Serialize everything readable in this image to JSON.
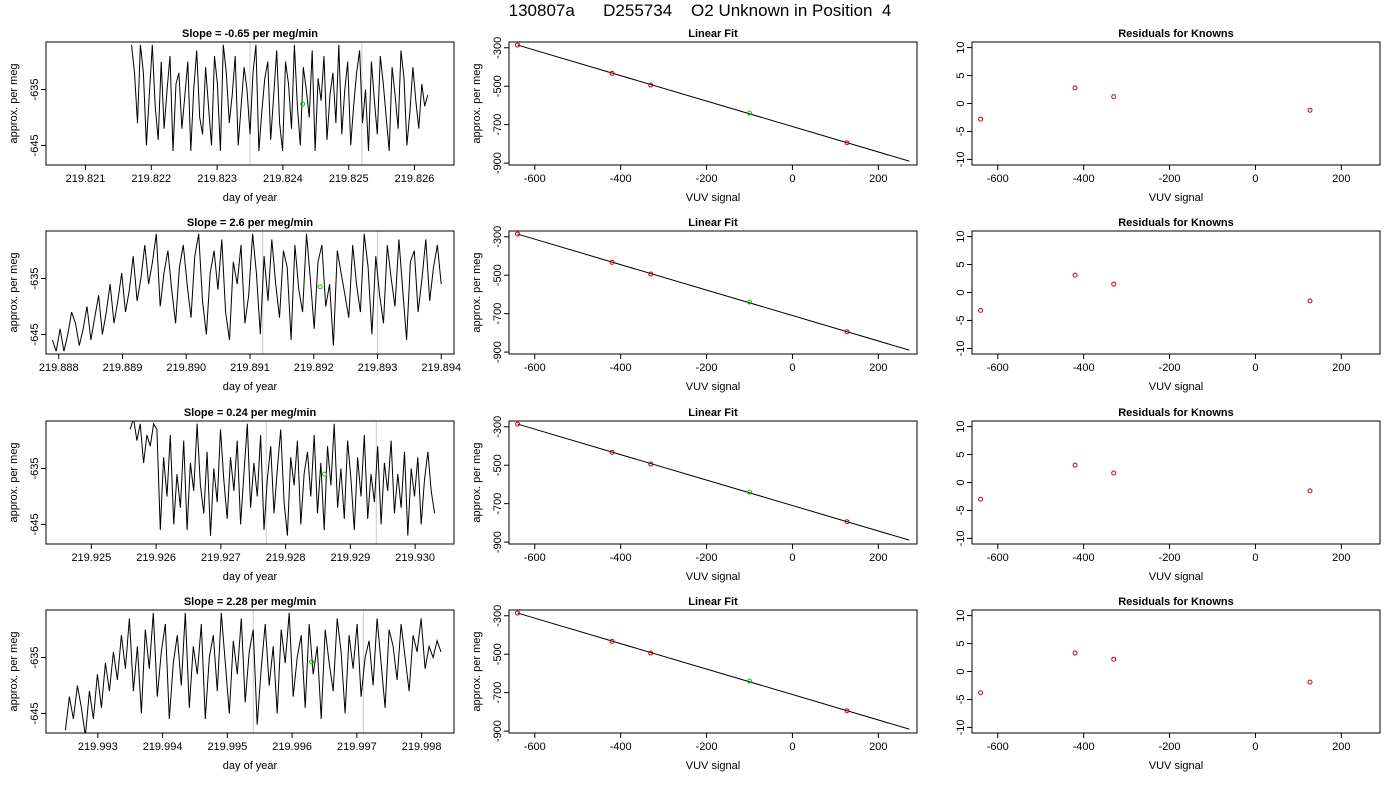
{
  "page_title": "130807a      D255734    O2 Unknown in Position  4",
  "colors": {
    "trace": "#000000",
    "known_point": "#cc0000",
    "unknown_point": "#00cc00",
    "guide_line": "#cccccc",
    "frame": "#000000"
  },
  "chart_data": [
    {
      "type": "line",
      "row": 1,
      "title": "Slope =  -0.65  per meg/min",
      "xlabel": "day of year",
      "ylabel": "approx. per meg",
      "xlim": [
        219.8204,
        219.8266
      ],
      "ylim": [
        -648.5,
        -626.5
      ],
      "x_ticks": [
        "219.821",
        "219.822",
        "219.823",
        "219.824",
        "219.825",
        "219.826"
      ],
      "y_ticks": [
        "-635",
        "-645"
      ],
      "start": 219.8217,
      "end": 219.8262,
      "guide_lines": [
        219.8235,
        219.8252
      ],
      "values": [
        -627,
        -632,
        -641,
        -627,
        -632,
        -645,
        -636,
        -627,
        -638,
        -644,
        -630,
        -642,
        -635,
        -629,
        -646,
        -634,
        -632,
        -642,
        -636,
        -630,
        -646,
        -635,
        -628,
        -640,
        -643,
        -631,
        -638,
        -645,
        -629,
        -634,
        -646,
        -627,
        -632,
        -641,
        -636,
        -629,
        -645,
        -638,
        -631,
        -635,
        -643,
        -632,
        -627,
        -646,
        -639,
        -633,
        -630,
        -644,
        -636,
        -628,
        -641,
        -646,
        -630,
        -634,
        -642,
        -627,
        -638,
        -645,
        -631,
        -635,
        -640,
        -628,
        -646,
        -633,
        -637,
        -629,
        -644,
        -636,
        -632,
        -641,
        -627,
        -643,
        -635,
        -630,
        -645,
        -638,
        -632,
        -628,
        -641,
        -635,
        -646,
        -630,
        -637,
        -643,
        -629,
        -634,
        -640,
        -646,
        -631,
        -636,
        -642,
        -628,
        -633,
        -645,
        -639,
        -631,
        -637,
        -642,
        -634,
        -638,
        -636
      ],
      "unknown_point": [
        219.8243,
        -637.6
      ]
    },
    {
      "type": "scatter",
      "row": 1,
      "title": "Linear Fit",
      "xlabel": "VUV signal",
      "ylabel": "approx. per meg",
      "xlim": [
        -660,
        290
      ],
      "ylim": [
        -910,
        -270
      ],
      "x_ticks": [
        -600,
        -400,
        -200,
        0,
        200
      ],
      "y_ticks": [
        -300,
        -500,
        -700,
        -900
      ],
      "fit_line": {
        "x": [
          -640,
          272
        ],
        "y": [
          -286,
          -890
        ]
      },
      "knowns": [
        [
          -640,
          -286
        ],
        [
          -420,
          -433
        ],
        [
          -330,
          -494
        ],
        [
          127,
          -794
        ]
      ],
      "unknown": [
        [
          -100,
          -640
        ]
      ]
    },
    {
      "type": "scatter",
      "row": 1,
      "title": "Residuals for Knowns",
      "xlabel": "VUV signal",
      "ylabel": "",
      "xlim": [
        -660,
        290
      ],
      "ylim": [
        -11,
        11
      ],
      "x_ticks": [
        -600,
        -400,
        -200,
        0,
        200
      ],
      "y_ticks": [
        10,
        5,
        0,
        -5,
        -10
      ],
      "knowns": [
        [
          -640,
          -2.8
        ],
        [
          -420,
          2.8
        ],
        [
          -330,
          1.2
        ],
        [
          127,
          -1.2
        ]
      ]
    },
    {
      "type": "line",
      "row": 2,
      "title": "Slope =  2.6  per meg/min",
      "xlabel": "day of year",
      "ylabel": "approx. per meg",
      "xlim": [
        219.8878,
        219.8942
      ],
      "ylim": [
        -648.5,
        -626.5
      ],
      "x_ticks": [
        "219.888",
        "219.889",
        "219.890",
        "219.891",
        "219.892",
        "219.893",
        "219.894"
      ],
      "y_ticks": [
        "-635",
        "-645"
      ],
      "start": 219.8879,
      "end": 219.894,
      "guide_lines": [
        219.8912,
        219.893
      ],
      "values": [
        -646,
        -648,
        -644,
        -648,
        -645,
        -641,
        -643,
        -647,
        -644,
        -640,
        -646,
        -642,
        -638,
        -645,
        -641,
        -636,
        -643,
        -639,
        -634,
        -641,
        -637,
        -631,
        -639,
        -635,
        -629,
        -636,
        -632,
        -627,
        -640,
        -634,
        -630,
        -637,
        -643,
        -633,
        -629,
        -636,
        -642,
        -631,
        -627,
        -639,
        -645,
        -634,
        -630,
        -637,
        -628,
        -641,
        -646,
        -632,
        -636,
        -629,
        -643,
        -638,
        -627,
        -634,
        -645,
        -631,
        -639,
        -628,
        -636,
        -642,
        -630,
        -633,
        -646,
        -629,
        -637,
        -641,
        -627,
        -635,
        -644,
        -632,
        -629,
        -640,
        -636,
        -647,
        -630,
        -634,
        -638,
        -642,
        -629,
        -636,
        -641,
        -627,
        -633,
        -645,
        -631,
        -638,
        -643,
        -629,
        -635,
        -640,
        -628,
        -637,
        -646,
        -632,
        -630,
        -641,
        -635,
        -628,
        -639,
        -633,
        -629,
        -636
      ],
      "unknown_point": [
        219.8921,
        -636.5
      ]
    },
    {
      "type": "scatter",
      "row": 2,
      "title": "Linear Fit",
      "xlabel": "VUV signal",
      "ylabel": "approx. per meg",
      "xlim": [
        -660,
        290
      ],
      "ylim": [
        -910,
        -270
      ],
      "x_ticks": [
        -600,
        -400,
        -200,
        0,
        200
      ],
      "y_ticks": [
        -300,
        -500,
        -700,
        -900
      ],
      "fit_line": {
        "x": [
          -640,
          272
        ],
        "y": [
          -286,
          -890
        ]
      },
      "knowns": [
        [
          -640,
          -286
        ],
        [
          -420,
          -433
        ],
        [
          -330,
          -494
        ],
        [
          127,
          -794
        ]
      ],
      "unknown": [
        [
          -100,
          -640
        ]
      ]
    },
    {
      "type": "scatter",
      "row": 2,
      "title": "Residuals for Knowns",
      "xlabel": "VUV signal",
      "ylabel": "",
      "xlim": [
        -660,
        290
      ],
      "ylim": [
        -11,
        11
      ],
      "x_ticks": [
        -600,
        -400,
        -200,
        0,
        200
      ],
      "y_ticks": [
        10,
        5,
        0,
        -5,
        -10
      ],
      "knowns": [
        [
          -640,
          -3.2
        ],
        [
          -420,
          3.1
        ],
        [
          -330,
          1.5
        ],
        [
          127,
          -1.5
        ]
      ]
    },
    {
      "type": "line",
      "row": 3,
      "title": "Slope =  0.24  per meg/min",
      "xlabel": "day of year",
      "ylabel": "approx. per meg",
      "xlim": [
        219.9243,
        219.9306
      ],
      "ylim": [
        -648.5,
        -626.5
      ],
      "x_ticks": [
        "219.925",
        "219.926",
        "219.927",
        "219.928",
        "219.929",
        "219.930"
      ],
      "y_ticks": [
        "-635",
        "-645"
      ],
      "start": 219.9256,
      "end": 219.9303,
      "guide_lines": [
        219.9277,
        219.9294
      ],
      "values": [
        -628,
        -626,
        -630,
        -627,
        -634,
        -629,
        -631,
        -627,
        -628,
        -646,
        -633,
        -640,
        -629,
        -645,
        -636,
        -642,
        -630,
        -646,
        -634,
        -639,
        -627,
        -638,
        -643,
        -632,
        -647,
        -635,
        -641,
        -628,
        -637,
        -644,
        -633,
        -639,
        -630,
        -645,
        -636,
        -627,
        -642,
        -634,
        -640,
        -629,
        -646,
        -637,
        -631,
        -643,
        -635,
        -628,
        -641,
        -647,
        -633,
        -638,
        -630,
        -645,
        -636,
        -632,
        -640,
        -629,
        -643,
        -634,
        -646,
        -631,
        -638,
        -627,
        -642,
        -635,
        -644,
        -630,
        -637,
        -646,
        -633,
        -640,
        -629,
        -644,
        -636,
        -641,
        -631,
        -645,
        -634,
        -639,
        -630,
        -643,
        -636,
        -642,
        -632,
        -647,
        -635,
        -640,
        -633,
        -645,
        -637,
        -632,
        -639,
        -643
      ],
      "unknown_point": [
        219.9286,
        -636.0
      ]
    },
    {
      "type": "scatter",
      "row": 3,
      "title": "Linear Fit",
      "xlabel": "VUV signal",
      "ylabel": "approx. per meg",
      "xlim": [
        -660,
        290
      ],
      "ylim": [
        -910,
        -270
      ],
      "x_ticks": [
        -600,
        -400,
        -200,
        0,
        200
      ],
      "y_ticks": [
        -300,
        -500,
        -700,
        -900
      ],
      "fit_line": {
        "x": [
          -640,
          272
        ],
        "y": [
          -286,
          -890
        ]
      },
      "knowns": [
        [
          -640,
          -286
        ],
        [
          -420,
          -433
        ],
        [
          -330,
          -494
        ],
        [
          127,
          -794
        ]
      ],
      "unknown": [
        [
          -100,
          -640
        ]
      ]
    },
    {
      "type": "scatter",
      "row": 3,
      "title": "Residuals for Knowns",
      "xlabel": "VUV signal",
      "ylabel": "",
      "xlim": [
        -660,
        290
      ],
      "ylim": [
        -11,
        11
      ],
      "x_ticks": [
        -600,
        -400,
        -200,
        0,
        200
      ],
      "y_ticks": [
        10,
        5,
        0,
        -5,
        -10
      ],
      "knowns": [
        [
          -640,
          -3.0
        ],
        [
          -420,
          3.1
        ],
        [
          -330,
          1.7
        ],
        [
          127,
          -1.5
        ]
      ]
    },
    {
      "type": "line",
      "row": 4,
      "title": "Slope =  2.28  per meg/min",
      "xlabel": "day of year",
      "ylabel": "approx. per meg",
      "xlim": [
        219.9922,
        219.9985
      ],
      "ylim": [
        -648.5,
        -626.5
      ],
      "x_ticks": [
        "219.993",
        "219.994",
        "219.995",
        "219.996",
        "219.997",
        "219.998"
      ],
      "y_ticks": [
        "-635",
        "-645"
      ],
      "start": 219.9925,
      "end": 219.9983,
      "guide_lines": [
        219.9954,
        219.9971
      ],
      "values": [
        -648,
        -642,
        -646,
        -640,
        -644,
        -649,
        -641,
        -646,
        -638,
        -644,
        -636,
        -641,
        -634,
        -639,
        -631,
        -637,
        -628,
        -641,
        -633,
        -645,
        -630,
        -637,
        -627,
        -642,
        -634,
        -629,
        -646,
        -636,
        -631,
        -640,
        -627,
        -644,
        -633,
        -638,
        -629,
        -646,
        -635,
        -631,
        -641,
        -627,
        -636,
        -645,
        -632,
        -638,
        -628,
        -643,
        -634,
        -630,
        -647,
        -637,
        -629,
        -640,
        -633,
        -645,
        -630,
        -636,
        -627,
        -642,
        -635,
        -631,
        -644,
        -629,
        -638,
        -633,
        -646,
        -630,
        -636,
        -641,
        -628,
        -634,
        -645,
        -631,
        -637,
        -629,
        -642,
        -635,
        -632,
        -640,
        -628,
        -636,
        -644,
        -630,
        -633,
        -639,
        -629,
        -635,
        -641,
        -631,
        -634,
        -628,
        -637,
        -633,
        -635,
        -632,
        -634
      ],
      "unknown_point": [
        219.9963,
        -635.8
      ]
    },
    {
      "type": "scatter",
      "row": 4,
      "title": "Linear Fit",
      "xlabel": "VUV signal",
      "ylabel": "approx. per meg",
      "xlim": [
        -660,
        290
      ],
      "ylim": [
        -910,
        -270
      ],
      "x_ticks": [
        -600,
        -400,
        -200,
        0,
        200
      ],
      "y_ticks": [
        -300,
        -500,
        -700,
        -900
      ],
      "fit_line": {
        "x": [
          -640,
          272
        ],
        "y": [
          -286,
          -890
        ]
      },
      "knowns": [
        [
          -640,
          -286
        ],
        [
          -420,
          -433
        ],
        [
          -330,
          -494
        ],
        [
          127,
          -794
        ]
      ],
      "unknown": [
        [
          -100,
          -640
        ]
      ]
    },
    {
      "type": "scatter",
      "row": 4,
      "title": "Residuals for Knowns",
      "xlabel": "VUV signal",
      "ylabel": "",
      "xlim": [
        -660,
        290
      ],
      "ylim": [
        -11,
        11
      ],
      "x_ticks": [
        -600,
        -400,
        -200,
        0,
        200
      ],
      "y_ticks": [
        10,
        5,
        0,
        -5,
        -10
      ],
      "knowns": [
        [
          -640,
          -3.8
        ],
        [
          -420,
          3.3
        ],
        [
          -330,
          2.2
        ],
        [
          127,
          -1.9
        ]
      ]
    }
  ]
}
